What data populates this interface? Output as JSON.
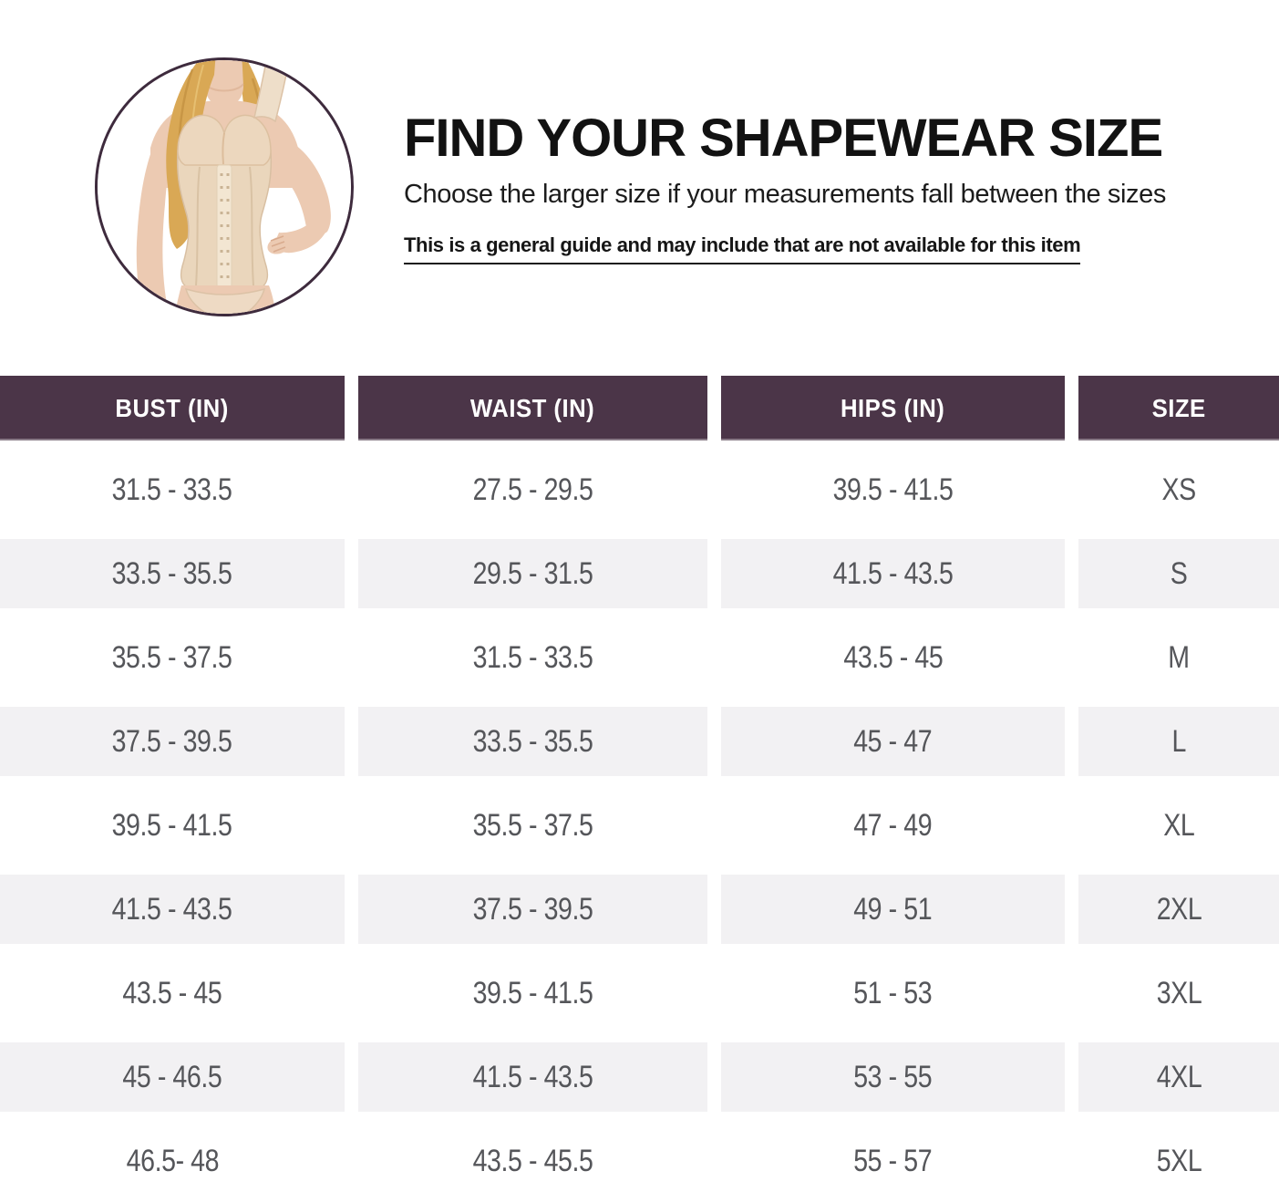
{
  "header": {
    "title": "FIND YOUR SHAPEWEAR SIZE",
    "subtitle": "Choose the larger size if your measurements fall between the sizes",
    "note": "This is a general guide and may include that are not available for this item",
    "image_icon": "shapewear-model-photo"
  },
  "chart_data": {
    "type": "table",
    "title": "FIND YOUR SHAPEWEAR SIZE",
    "columns": [
      "BUST (IN)",
      "WAIST (IN)",
      "HIPS (IN)",
      "SIZE"
    ],
    "rows": [
      [
        "31.5 - 33.5",
        "27.5 - 29.5",
        "39.5 - 41.5",
        "XS"
      ],
      [
        "33.5 - 35.5",
        "29.5 - 31.5",
        "41.5 - 43.5",
        "S"
      ],
      [
        "35.5 - 37.5",
        "31.5 - 33.5",
        "43.5 - 45",
        "M"
      ],
      [
        "37.5 - 39.5",
        "33.5 - 35.5",
        "45 - 47",
        "L"
      ],
      [
        "39.5 - 41.5",
        "35.5 - 37.5",
        "47 - 49",
        "XL"
      ],
      [
        "41.5 - 43.5",
        "37.5 - 39.5",
        "49 - 51",
        "2XL"
      ],
      [
        "43.5 - 45",
        "39.5 - 41.5",
        "51 - 53",
        "3XL"
      ],
      [
        "45 - 46.5",
        "41.5 - 43.5",
        "53 - 55",
        "4XL"
      ],
      [
        "46.5- 48",
        "43.5 - 45.5",
        "55 - 57",
        "5XL"
      ]
    ],
    "layout": {
      "alternating_row_shading": true,
      "shaded_rows": [
        "S",
        "L",
        "2XL",
        "4XL"
      ]
    }
  },
  "colors": {
    "header_bg": "#4b3548",
    "header_text": "#ffffff",
    "alt_row_bg": "#f2f1f3",
    "cell_text": "#55565a",
    "title_text": "#121212",
    "circle_border": "#3e2b3d",
    "skin": "#eccab2",
    "corset": "#ead6bc",
    "hair": "#d9a855"
  }
}
